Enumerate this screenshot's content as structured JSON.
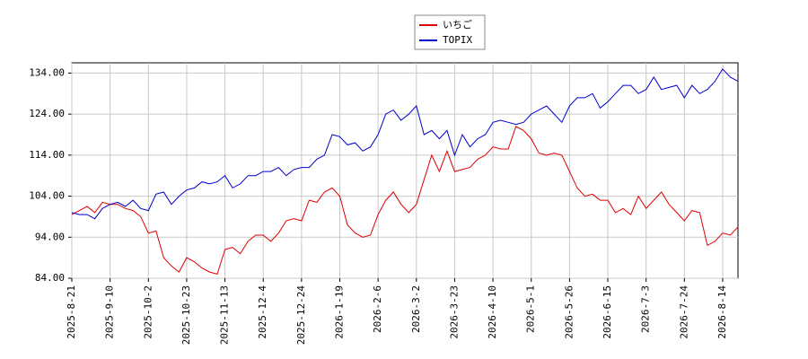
{
  "chart_data": {
    "type": "line",
    "categories": [
      "2025-8-21",
      null,
      null,
      null,
      null,
      "2025-9-10",
      null,
      null,
      null,
      null,
      "2025-10-2",
      null,
      null,
      null,
      null,
      "2025-10-23",
      null,
      null,
      null,
      null,
      "2025-11-13",
      null,
      null,
      null,
      null,
      "2025-12-4",
      null,
      null,
      null,
      null,
      "2025-12-24",
      null,
      null,
      null,
      null,
      "2026-1-19",
      null,
      null,
      null,
      null,
      "2026-2-6",
      null,
      null,
      null,
      null,
      "2026-3-2",
      null,
      null,
      null,
      null,
      "2026-3-23",
      null,
      null,
      null,
      null,
      "2026-4-10",
      null,
      null,
      null,
      null,
      "2026-5-1",
      null,
      null,
      null,
      null,
      "2026-5-26",
      null,
      null,
      null,
      null,
      "2026-6-15",
      null,
      null,
      null,
      null,
      "2026-7-3",
      null,
      null,
      null,
      null,
      "2026-7-24",
      null,
      null,
      null,
      null,
      "2026-8-14",
      null,
      null
    ],
    "series": [
      {
        "name": "いちご",
        "color": "#dd0000",
        "values": [
          99.5,
          100.5,
          101.5,
          100,
          102.5,
          102,
          102,
          101,
          100.5,
          99,
          95,
          95.5,
          89,
          87,
          85.5,
          89,
          88,
          86.5,
          85.5,
          85,
          91,
          91.5,
          90,
          93,
          94.5,
          94.5,
          93,
          95,
          98,
          98.5,
          98,
          103,
          102.5,
          105,
          106,
          104,
          97,
          95,
          94,
          94.5,
          99.5,
          103,
          105,
          102,
          100,
          102,
          108,
          114,
          110,
          115,
          110,
          110.5,
          111,
          113,
          114,
          116,
          115.5,
          115.5,
          121,
          120,
          118,
          114.5,
          114,
          114.5,
          114,
          110,
          106,
          104,
          104.5,
          103,
          103,
          100,
          101,
          99.5,
          104,
          101,
          103,
          105,
          102,
          100,
          98,
          100.5,
          100,
          92,
          93,
          95,
          94.5,
          96.5
        ]
      },
      {
        "name": "TOPIX",
        "color": "#0000cc",
        "values": [
          100,
          99.5,
          99.5,
          98.5,
          101,
          102,
          102.5,
          101.5,
          103,
          101,
          100.5,
          104.5,
          105,
          102,
          104,
          105.5,
          106,
          107.5,
          107,
          107.5,
          109,
          106,
          107,
          109,
          109,
          110,
          110,
          111,
          109,
          110.5,
          111,
          111,
          113,
          114,
          119,
          118.5,
          116.5,
          117,
          115,
          116,
          119,
          124,
          125,
          122.5,
          124,
          126,
          119,
          120,
          118,
          120,
          114,
          119,
          116,
          118,
          119,
          122,
          122.5,
          122,
          121.5,
          122,
          124,
          125,
          126,
          124,
          122,
          126,
          128,
          128,
          129,
          125.5,
          127,
          129,
          131,
          131,
          129,
          130,
          133,
          130,
          130.5,
          131,
          128,
          131,
          129,
          130,
          132,
          135,
          133,
          132
        ]
      }
    ],
    "ylim": [
      84,
      136.5
    ],
    "yticks": [
      {
        "value": 84,
        "label": "84.00"
      },
      {
        "value": 94,
        "label": "94.00"
      },
      {
        "value": 104,
        "label": "104.00"
      },
      {
        "value": 114,
        "label": "114.00"
      },
      {
        "value": 124,
        "label": "124.00"
      },
      {
        "value": 134,
        "label": "134.00"
      }
    ],
    "grid": true,
    "legend": "top"
  }
}
